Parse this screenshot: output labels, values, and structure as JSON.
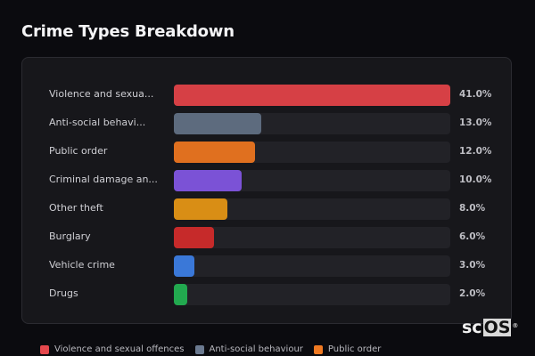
{
  "header": {
    "title": "Crime Types Breakdown"
  },
  "chart_data": {
    "type": "bar",
    "orientation": "horizontal",
    "title": "Crime Types Breakdown",
    "categories": [
      "Violence and sexual offences",
      "Anti-social behaviour",
      "Public order",
      "Criminal damage and arson",
      "Other theft",
      "Burglary",
      "Vehicle crime",
      "Drugs"
    ],
    "display_labels": [
      "Violence and sexua...",
      "Anti-social behavi...",
      "Public order",
      "Criminal damage an...",
      "Other theft",
      "Burglary",
      "Vehicle crime",
      "Drugs"
    ],
    "values": [
      41.0,
      13.0,
      12.0,
      10.0,
      8.0,
      6.0,
      3.0,
      2.0
    ],
    "value_labels": [
      "41.0%",
      "13.0%",
      "12.0%",
      "10.0%",
      "8.0%",
      "6.0%",
      "3.0%",
      "2.0%"
    ],
    "colors": [
      "#d64045",
      "#5d6b7e",
      "#e0701f",
      "#7b52d6",
      "#d98e15",
      "#c62a2a",
      "#3a78d8",
      "#22a94f"
    ],
    "xlim": [
      0,
      41
    ],
    "grid": false,
    "legend_position": "bottom",
    "legend": [
      "Violence and sexual offences",
      "Anti-social behaviour",
      "Public order"
    ]
  },
  "rows": [
    {
      "label": "Violence and sexua...",
      "value": "41.0%",
      "width": "100%",
      "color": "#d64045"
    },
    {
      "label": "Anti-social behavi...",
      "value": "13.0%",
      "width": "31.7%",
      "color": "#5d6b7e"
    },
    {
      "label": "Public order",
      "value": "12.0%",
      "width": "29.3%",
      "color": "#e0701f"
    },
    {
      "label": "Criminal damage an...",
      "value": "10.0%",
      "width": "24.4%",
      "color": "#7b52d6"
    },
    {
      "label": "Other theft",
      "value": "8.0%",
      "width": "19.5%",
      "color": "#d98e15"
    },
    {
      "label": "Burglary",
      "value": "6.0%",
      "width": "14.6%",
      "color": "#c62a2a"
    },
    {
      "label": "Vehicle crime",
      "value": "3.0%",
      "width": "7.3%",
      "color": "#3a78d8"
    },
    {
      "label": "Drugs",
      "value": "2.0%",
      "width": "4.9%",
      "color": "#22a94f"
    }
  ],
  "legend": [
    {
      "label": "Violence and sexual offences",
      "color": "#e5484d"
    },
    {
      "label": "Anti-social behaviour",
      "color": "#6b7a90"
    },
    {
      "label": "Public order",
      "color": "#f07a22"
    }
  ],
  "watermark": {
    "part1": "sc",
    "part2": "OS",
    "mark": "®"
  }
}
